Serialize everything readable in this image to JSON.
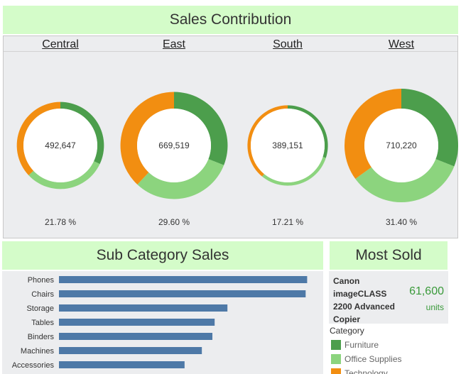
{
  "sales_title": "Sales Contribution",
  "sub_title": "Sub Category Sales",
  "most_title": "Most Sold",
  "colors": {
    "furniture": "#4c9e4c",
    "office_supplies": "#8cd47e",
    "technology": "#f28e11",
    "bar": "#4e79a7"
  },
  "chart_data": [
    {
      "type": "pie",
      "variant": "donut",
      "title": "Sales Contribution",
      "legend": [
        "Furniture",
        "Office Supplies",
        "Technology"
      ],
      "regions": [
        {
          "name": "Central",
          "total": "492,647",
          "share": "21.78 %",
          "segments": [
            {
              "category": "Furniture",
              "fraction": 0.32
            },
            {
              "category": "Office Supplies",
              "fraction": 0.31
            },
            {
              "category": "Technology",
              "fraction": 0.37
            }
          ]
        },
        {
          "name": "East",
          "total": "669,519",
          "share": "29.60 %",
          "segments": [
            {
              "category": "Furniture",
              "fraction": 0.31
            },
            {
              "category": "Office Supplies",
              "fraction": 0.31
            },
            {
              "category": "Technology",
              "fraction": 0.38
            }
          ]
        },
        {
          "name": "South",
          "total": "389,151",
          "share": "17.21 %",
          "segments": [
            {
              "category": "Furniture",
              "fraction": 0.3
            },
            {
              "category": "Office Supplies",
              "fraction": 0.31
            },
            {
              "category": "Technology",
              "fraction": 0.39
            }
          ]
        },
        {
          "name": "West",
          "total": "710,220",
          "share": "31.40 %",
          "segments": [
            {
              "category": "Furniture",
              "fraction": 0.31
            },
            {
              "category": "Office Supplies",
              "fraction": 0.34
            },
            {
              "category": "Technology",
              "fraction": 0.35
            }
          ]
        }
      ]
    },
    {
      "type": "bar",
      "orientation": "horizontal",
      "title": "Sub Category Sales",
      "categories": [
        "Phones",
        "Chairs",
        "Storage",
        "Tables",
        "Binders",
        "Machines",
        "Accessories"
      ],
      "values": [
        330000,
        328000,
        224000,
        207000,
        204000,
        190000,
        167000
      ],
      "xlim": [
        0,
        340000
      ]
    }
  ],
  "most_sold": {
    "name": "Canon imageCLASS 2200 Advanced Copier",
    "value": "61,600",
    "unit": "units"
  },
  "legend": {
    "title": "Category",
    "items": [
      "Furniture",
      "Office Supplies",
      "Technology"
    ]
  }
}
